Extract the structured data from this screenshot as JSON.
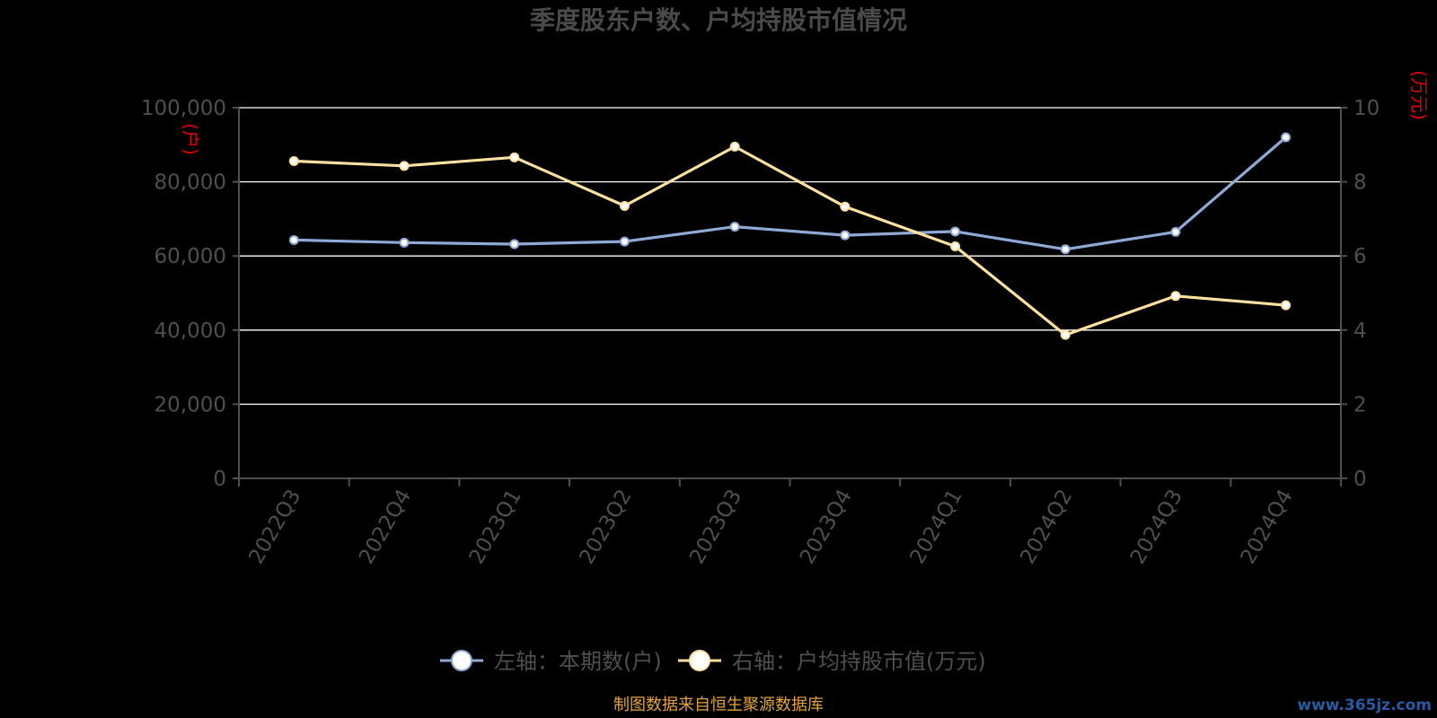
{
  "chart_data": {
    "type": "line",
    "title": "季度股东户数、户均持股市值情况",
    "categories": [
      "2022Q3",
      "2022Q4",
      "2023Q1",
      "2023Q2",
      "2023Q3",
      "2023Q4",
      "2024Q1",
      "2024Q2",
      "2024Q3",
      "2024Q4"
    ],
    "left_axis": {
      "unit": "(户)",
      "ylim": [
        0,
        100000
      ],
      "ticks": [
        "0",
        "20,000",
        "40,000",
        "60,000",
        "80,000",
        "100,000"
      ]
    },
    "right_axis": {
      "unit": "(万元)",
      "ylim": [
        0,
        10
      ],
      "ticks": [
        "0",
        "2",
        "4",
        "6",
        "8",
        "10"
      ]
    },
    "series": [
      {
        "name": "左轴：本期数(户)",
        "axis": "left",
        "color": "#8fa9d6",
        "values": [
          64300,
          63600,
          63200,
          63900,
          67900,
          65600,
          66600,
          61800,
          66500,
          92000
        ]
      },
      {
        "name": "右轴：户均持股市值(万元)",
        "axis": "right",
        "color": "#ffe0a0",
        "values": [
          8.56,
          8.43,
          8.66,
          7.35,
          8.95,
          7.33,
          6.26,
          3.87,
          4.92,
          4.67
        ]
      }
    ],
    "grid": true,
    "legend_position": "bottom"
  },
  "footer": {
    "source": "制图数据来自恒生聚源数据库",
    "watermark": "www.365jz.com"
  },
  "colors": {
    "background": "#000000",
    "axis": "#4f4f4f",
    "gridline": "#ffffff",
    "unit_label": "#e00000"
  }
}
